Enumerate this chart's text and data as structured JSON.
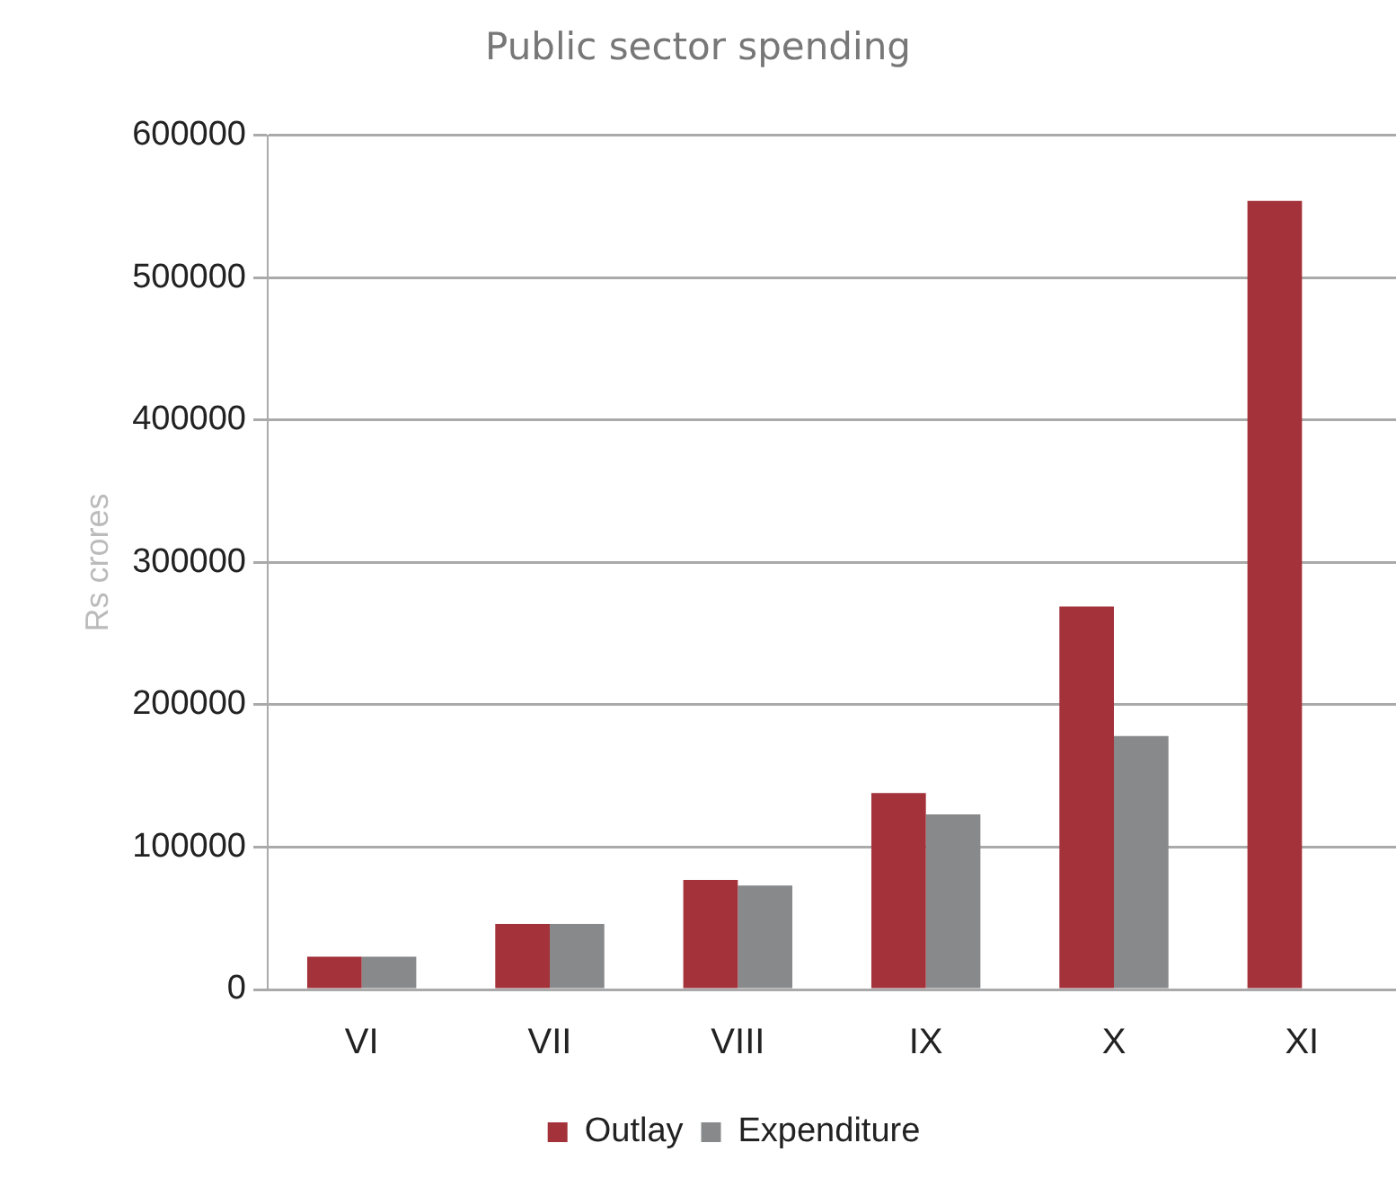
{
  "chart_data": {
    "type": "bar",
    "title": "Public sector spending",
    "ylabel": "Rs crores",
    "categories": [
      "VI",
      "VII",
      "VIII",
      "IX",
      "X",
      "XI"
    ],
    "series": [
      {
        "name": "Outlay",
        "color": "#a3323a",
        "values": [
          23000,
          46000,
          77000,
          138000,
          269000,
          554000
        ]
      },
      {
        "name": "Expenditure",
        "color": "#87898b",
        "values": [
          23000,
          46000,
          73000,
          123000,
          178000,
          null
        ]
      }
    ],
    "ylim": [
      0,
      600000
    ],
    "yticks": [
      0,
      100000,
      200000,
      300000,
      400000,
      500000,
      600000
    ],
    "grid": "y",
    "legend": "bottom"
  }
}
